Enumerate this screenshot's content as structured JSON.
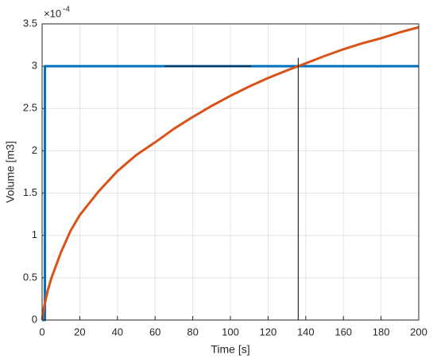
{
  "chart_data": {
    "type": "line",
    "xlabel": "Time [s]",
    "ylabel": "Volume [m3]",
    "y_multiplier": "×10",
    "y_multiplier_exponent": "-4",
    "xlim": [
      0,
      200
    ],
    "xticks": [
      0,
      20,
      40,
      60,
      80,
      100,
      120,
      140,
      160,
      180,
      200
    ],
    "ylim": [
      0,
      3.5
    ],
    "yticks": [
      0,
      0.5,
      1,
      1.5,
      2,
      2.5,
      3,
      3.5
    ],
    "grid": true,
    "series": [
      {
        "color": "#0072BD",
        "width": 3,
        "x": [
          0,
          1.5,
          1.5,
          200
        ],
        "values": [
          0,
          0,
          3,
          3
        ]
      },
      {
        "color": "#D95319",
        "width": 3,
        "x": [
          0,
          1,
          3,
          5,
          10,
          15,
          20,
          30,
          40,
          50,
          60,
          70,
          80,
          90,
          100,
          110,
          120,
          130,
          136,
          150,
          160,
          170,
          180,
          190,
          200
        ],
        "values": [
          0,
          0.15,
          0.35,
          0.5,
          0.8,
          1.05,
          1.24,
          1.52,
          1.76,
          1.95,
          2.1,
          2.26,
          2.4,
          2.53,
          2.65,
          2.76,
          2.86,
          2.95,
          3.0,
          3.12,
          3.2,
          3.27,
          3.33,
          3.4,
          3.46
        ]
      },
      {
        "color": "#000000",
        "width": 1,
        "x": [
          65,
          111
        ],
        "values": [
          3,
          3
        ]
      },
      {
        "color": "#000000",
        "width": 1,
        "x": [
          136,
          136
        ],
        "values": [
          0,
          3.1
        ]
      }
    ]
  }
}
